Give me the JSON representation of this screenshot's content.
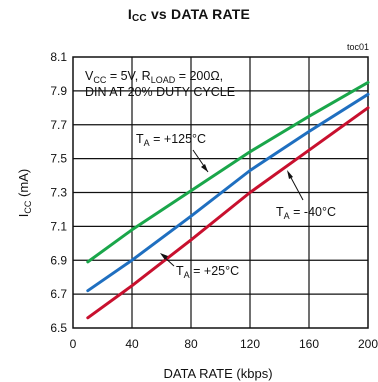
{
  "chart_data": {
    "type": "line",
    "title_main": "I",
    "title_sub": "CC",
    "title_rest": " vs DATA RATE",
    "tag": "toc01",
    "xlabel": "DATA RATE (kbps)",
    "ylabel_main": "I",
    "ylabel_sub": "CC",
    "ylabel_rest": " (mA)",
    "xlim": [
      0,
      200
    ],
    "ylim": [
      6.5,
      8.1
    ],
    "x_ticks": [
      "0",
      "40",
      "80",
      "120",
      "160",
      "200"
    ],
    "y_ticks": [
      "6.5",
      "6.7",
      "6.9",
      "7.1",
      "7.3",
      "7.5",
      "7.7",
      "7.9",
      "8.1"
    ],
    "grid": true,
    "conditions": {
      "line1_a": "V",
      "line1_a_sub": "CC",
      "line1_b": " = 5V, R",
      "line1_b_sub": "LOAD",
      "line1_c": " = 200Ω,",
      "line2": "DIN AT 20% DUTY CYCLE"
    },
    "series": [
      {
        "name": "TA = +125°C",
        "label_pre": "T",
        "label_sub": "A",
        "label_post": " = +125°C",
        "color": "#1aa64a",
        "x": [
          10,
          40,
          80,
          120,
          160,
          200
        ],
        "y": [
          6.89,
          7.08,
          7.31,
          7.54,
          7.75,
          7.95
        ]
      },
      {
        "name": "TA = +25°C",
        "label_pre": "T",
        "label_sub": "A",
        "label_post": " = +25°C",
        "color": "#1f6fc0",
        "x": [
          10,
          40,
          80,
          120,
          160,
          200
        ],
        "y": [
          6.72,
          6.9,
          7.16,
          7.43,
          7.66,
          7.88
        ]
      },
      {
        "name": "TA = -40°C",
        "label_pre": "T",
        "label_sub": "A",
        "label_post": " = -40°C",
        "color": "#c8102e",
        "x": [
          10,
          40,
          80,
          120,
          160,
          200
        ],
        "y": [
          6.56,
          6.75,
          7.02,
          7.3,
          7.55,
          7.8
        ]
      }
    ]
  }
}
